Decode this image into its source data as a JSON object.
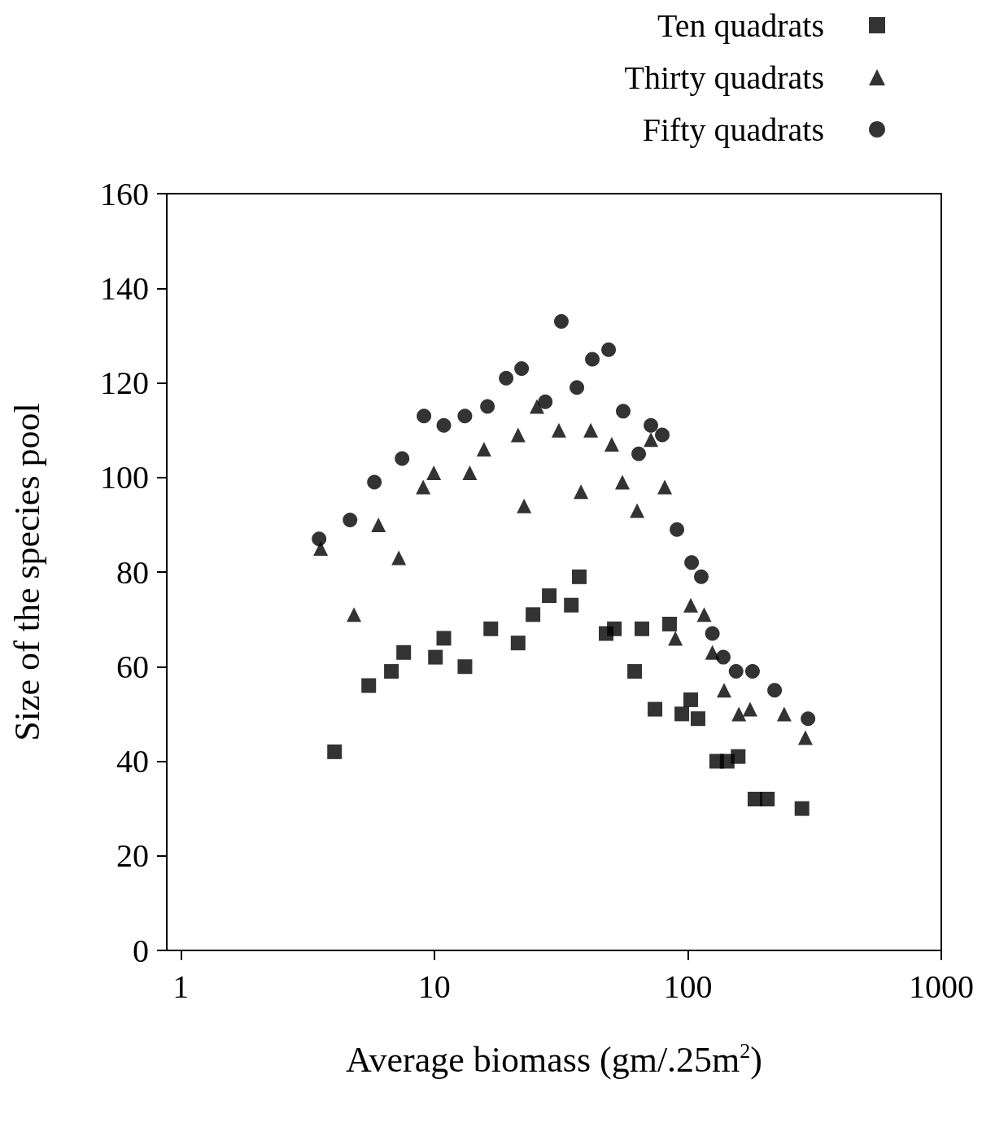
{
  "chart_data": {
    "type": "scatter",
    "xlabel": "Average biomass (gm/.25m$^{2}$)",
    "ylabel": "Size of the species pool",
    "log": "x",
    "xlim": [
      0.88,
      1000
    ],
    "xticks": [
      1,
      10,
      100,
      1000
    ],
    "ylim": [
      0,
      160
    ],
    "yticks": [
      0,
      20,
      40,
      60,
      80,
      100,
      120,
      140,
      160
    ],
    "grid": false,
    "legend": "top right",
    "series": [
      {
        "name": "Ten quadrats",
        "color": "#000000",
        "marker": "square",
        "x": [
          4.04,
          5.51,
          6.77,
          7.57,
          10.1,
          10.9,
          13.2,
          16.7,
          21.4,
          24.5,
          28.4,
          34.7,
          37.3,
          47.6,
          51.3,
          61.7,
          65.9,
          74.2,
          84.7,
          94.7,
          102.7,
          109.7,
          130,
          143,
          158,
          184,
          206,
          282
        ],
        "values": [
          42,
          56,
          59,
          63,
          62,
          66,
          60,
          68,
          65,
          71,
          75,
          73,
          79,
          67,
          68,
          59,
          68,
          51,
          69,
          50,
          53,
          49,
          40,
          40,
          41,
          32,
          32,
          30
        ]
      },
      {
        "name": "Thirty quadrats",
        "color": "#000000",
        "marker": "triangle",
        "x": [
          3.56,
          4.82,
          6.02,
          7.24,
          9.04,
          9.95,
          13.8,
          15.7,
          21.4,
          22.6,
          25.4,
          31.0,
          37.9,
          41.4,
          50.1,
          55.2,
          63.1,
          71.5,
          81.1,
          89.3,
          102.7,
          116,
          125,
          139,
          159,
          176,
          240,
          291
        ],
        "values": [
          85,
          71,
          90,
          83,
          98,
          101,
          101,
          106,
          109,
          94,
          115,
          110,
          97,
          110,
          107,
          99,
          93,
          108,
          98,
          66,
          73,
          71,
          63,
          55,
          50,
          51,
          50,
          45
        ]
      },
      {
        "name": "Fifty quadrats",
        "color": "#000000",
        "marker": "circle",
        "x": [
          3.51,
          4.65,
          5.8,
          7.46,
          9.1,
          10.9,
          13.2,
          16.2,
          19.2,
          22.1,
          27.4,
          31.7,
          36.5,
          42.0,
          48.7,
          55.6,
          64.0,
          71.5,
          79.3,
          90.6,
          103.5,
          113,
          125,
          138,
          155,
          180,
          220,
          298
        ],
        "values": [
          87,
          91,
          99,
          104,
          113,
          111,
          113,
          115,
          121,
          123,
          116,
          133,
          119,
          125,
          127,
          114,
          105,
          111,
          109,
          89,
          82,
          79,
          67,
          62,
          59,
          59,
          55,
          49
        ]
      }
    ]
  }
}
